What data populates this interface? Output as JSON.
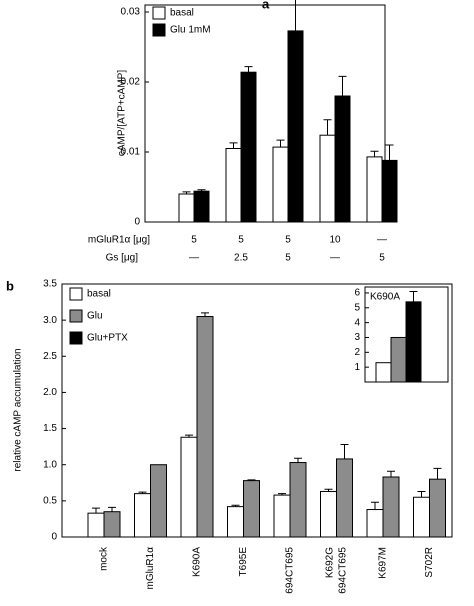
{
  "chart_data": [
    {
      "type": "bar",
      "panel_label": "a",
      "y_label": "cAMP/[ATP+cAMP]",
      "ylim": [
        0,
        0.031
      ],
      "yticks": [
        0,
        0.01,
        0.02,
        0.03
      ],
      "series": [
        {
          "name": "basal",
          "color": "#ffffff",
          "values": [
            0.004,
            0.0105,
            0.0107,
            0.0124,
            0.0093
          ],
          "error": [
            0.0003,
            0.0008,
            0.001,
            0.0022,
            0.0008
          ]
        },
        {
          "name": "Glu 1mM",
          "color": "#000000",
          "values": [
            0.0044,
            0.0214,
            0.0273,
            0.018,
            0.0088
          ],
          "error": [
            0.0002,
            0.0008,
            0.0045,
            0.0028,
            0.0022
          ]
        }
      ],
      "rows": [
        {
          "label": "mGluR1α [μg]",
          "values": [
            "5",
            "5",
            "5",
            "10",
            "—"
          ]
        },
        {
          "label": "Gs [μg]",
          "values": [
            "—",
            "2.5",
            "5",
            "—",
            "5"
          ]
        }
      ]
    },
    {
      "type": "bar",
      "panel_label": "b",
      "y_label": "relative cAMP accumulation",
      "ylim": [
        0,
        3.5
      ],
      "yticks": [
        0,
        0.5,
        {
          "value": 1,
          "label": "1.0"
        },
        1.5,
        {
          "value": 2,
          "label": "2.0"
        },
        2.5,
        {
          "value": 3,
          "label": "3.0"
        },
        3.5
      ],
      "categories": [
        "mock",
        "mGluR1α",
        "K690A",
        "T695E",
        "694CT695",
        [
          "K692G",
          "694CT695"
        ],
        "K697M",
        "S702R"
      ],
      "series": [
        {
          "name": "basal",
          "color": "#ffffff",
          "values": [
            0.33,
            0.6,
            1.38,
            0.42,
            0.58,
            0.63,
            0.38,
            0.55
          ],
          "error": [
            0.07,
            0.02,
            0.03,
            0.02,
            0.02,
            0.03,
            0.1,
            0.08
          ]
        },
        {
          "name": "Glu",
          "color": "#8c8c8c",
          "values": [
            0.35,
            1.0,
            3.05,
            0.78,
            1.03,
            1.08,
            0.83,
            0.8
          ],
          "error": [
            0.06,
            null,
            0.05,
            0.01,
            0.06,
            0.2,
            0.08,
            0.15
          ]
        },
        {
          "name": "Glu+PTX",
          "color": "#000000",
          "values": [
            null,
            null,
            null,
            null,
            null,
            null,
            null,
            null
          ]
        }
      ]
    },
    {
      "type": "bar",
      "title": "K690A",
      "ylim": [
        0,
        6.4
      ],
      "yticks": [
        1,
        2,
        3,
        4,
        5,
        6
      ],
      "series": [
        {
          "color": "#ffffff",
          "values": [
            1.3
          ],
          "error": [
            null
          ]
        },
        {
          "color": "#8c8c8c",
          "values": [
            3.0
          ],
          "error": [
            null
          ]
        },
        {
          "color": "#000000",
          "values": [
            5.4
          ],
          "error": [
            0.7
          ]
        }
      ]
    }
  ]
}
